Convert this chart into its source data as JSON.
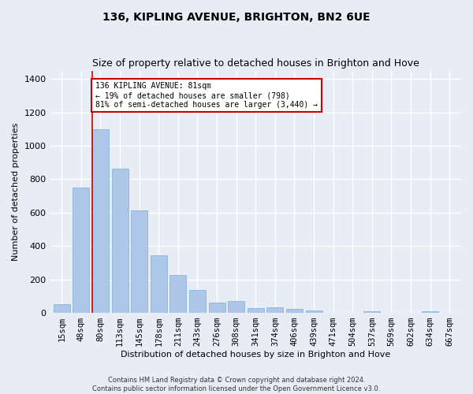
{
  "title": "136, KIPLING AVENUE, BRIGHTON, BN2 6UE",
  "subtitle": "Size of property relative to detached houses in Brighton and Hove",
  "xlabel": "Distribution of detached houses by size in Brighton and Hove",
  "ylabel": "Number of detached properties",
  "footer_line1": "Contains HM Land Registry data © Crown copyright and database right 2024.",
  "footer_line2": "Contains public sector information licensed under the Open Government Licence v3.0.",
  "categories": [
    "15sqm",
    "48sqm",
    "80sqm",
    "113sqm",
    "145sqm",
    "178sqm",
    "211sqm",
    "243sqm",
    "276sqm",
    "308sqm",
    "341sqm",
    "374sqm",
    "406sqm",
    "439sqm",
    "471sqm",
    "504sqm",
    "537sqm",
    "569sqm",
    "602sqm",
    "634sqm",
    "667sqm"
  ],
  "values": [
    50,
    750,
    1100,
    865,
    615,
    345,
    225,
    135,
    62,
    70,
    30,
    32,
    22,
    13,
    0,
    0,
    12,
    0,
    0,
    12,
    0
  ],
  "bar_color": "#aec6e8",
  "bar_edge_color": "#7bafd4",
  "marker_line_color": "#cc0000",
  "annotation_line1": "136 KIPLING AVENUE: 81sqm",
  "annotation_line2": "← 19% of detached houses are smaller (798)",
  "annotation_line3": "81% of semi-detached houses are larger (3,440) →",
  "annotation_box_color": "#ffffff",
  "annotation_box_edge_color": "#cc0000",
  "ylim": [
    0,
    1450
  ],
  "yticks": [
    0,
    200,
    400,
    600,
    800,
    1000,
    1200,
    1400
  ],
  "background_color": "#e8ecf5",
  "plot_background_color": "#e8ecf5",
  "grid_color": "#ffffff",
  "title_fontsize": 10,
  "subtitle_fontsize": 9,
  "axis_label_fontsize": 8,
  "footer_fontsize": 6,
  "tick_fontsize": 7.5
}
